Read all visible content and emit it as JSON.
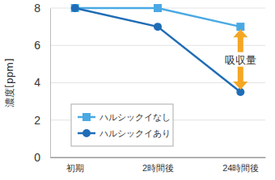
{
  "chart_data": {
    "type": "line",
    "y_label": "濃度[ppm]",
    "categories": [
      "初期",
      "2時間後",
      "24時間後"
    ],
    "series": [
      {
        "name": "ハルシックイなし",
        "color": "#4aa9e3",
        "marker": "square",
        "values": [
          8,
          8,
          7
        ]
      },
      {
        "name": "ハルシックイあり",
        "color": "#1f6db6",
        "marker": "circle",
        "values": [
          8,
          7,
          3.5
        ]
      }
    ],
    "ylim": [
      0,
      8
    ],
    "yticks": [
      0,
      2,
      4,
      6,
      8
    ],
    "grid": true,
    "legend": "lower left",
    "annotations": [
      {
        "text": "吸収量",
        "category": "24時間後",
        "from": 7,
        "to": 3.5,
        "color": "#f5a623"
      }
    ]
  }
}
